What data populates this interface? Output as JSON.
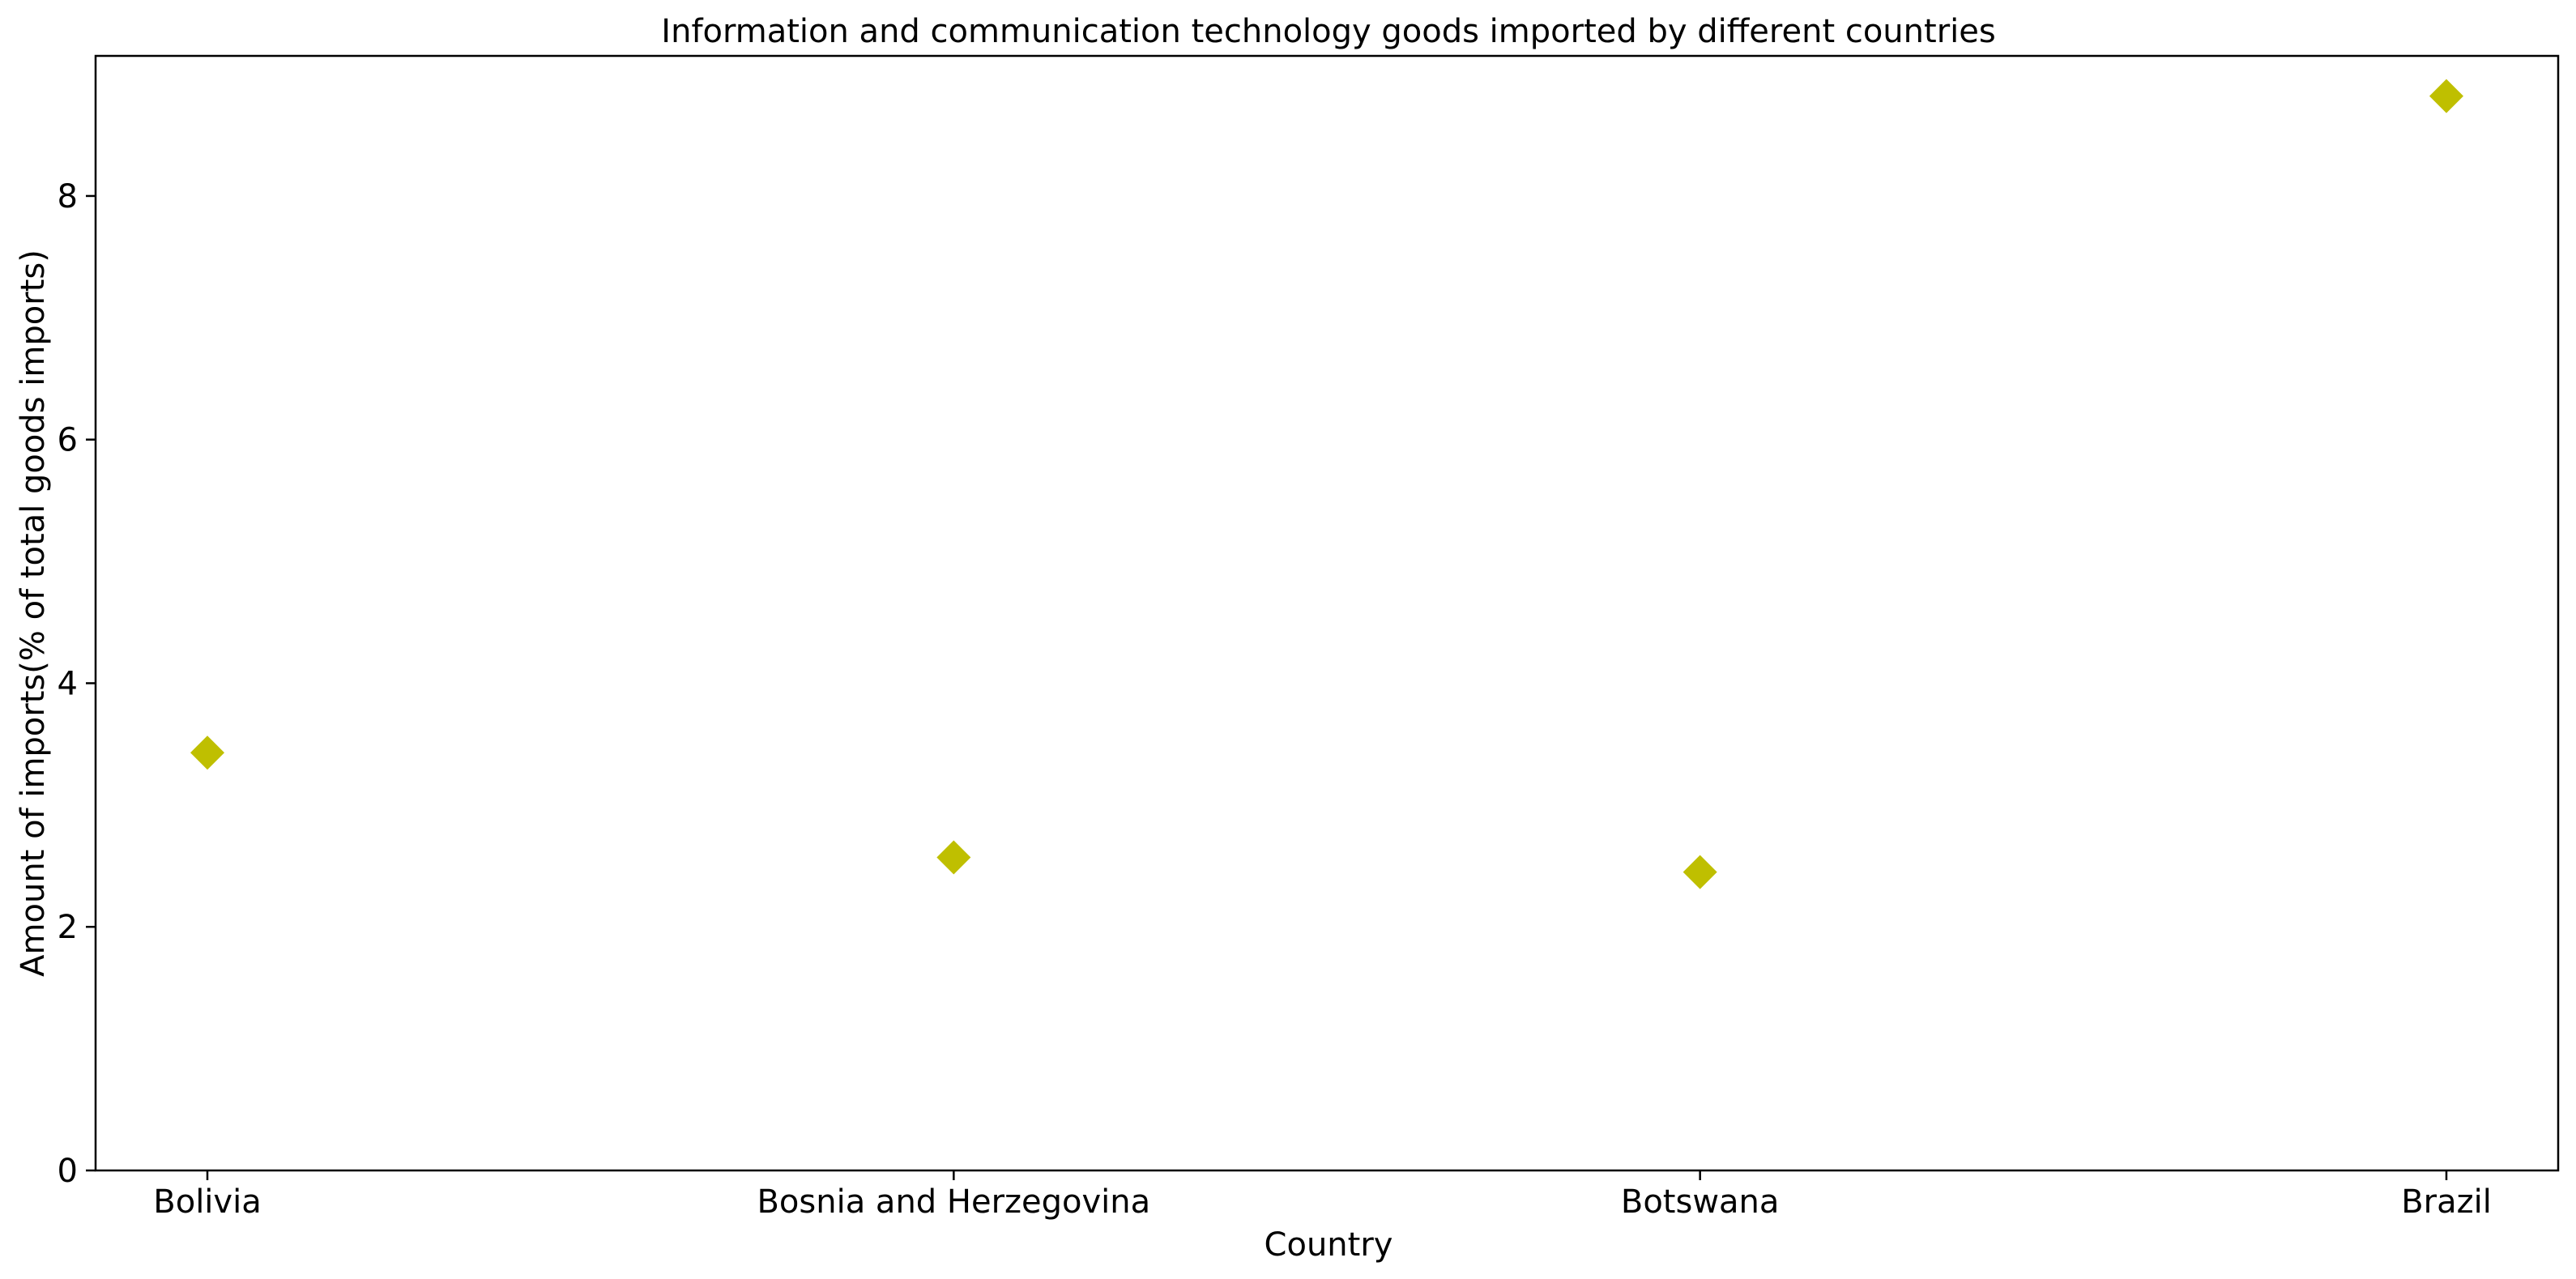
{
  "chart_data": {
    "type": "scatter",
    "title": "Information and communication technology goods imported by different countries",
    "xlabel": "Country",
    "ylabel": "Amount of imports(% of total goods imports)",
    "categories": [
      "Bolivia",
      "Bosnia and Herzegovina",
      "Botswana",
      "Brazil"
    ],
    "series": [
      {
        "values": [
          3.43,
          2.57,
          2.45,
          8.82
        ]
      }
    ],
    "ylim": [
      0,
      9.15
    ],
    "yticks": [
      0,
      2,
      4,
      6,
      8
    ],
    "marker": "diamond",
    "marker_color": "#bfbf00",
    "grid": false,
    "legend": "none"
  }
}
